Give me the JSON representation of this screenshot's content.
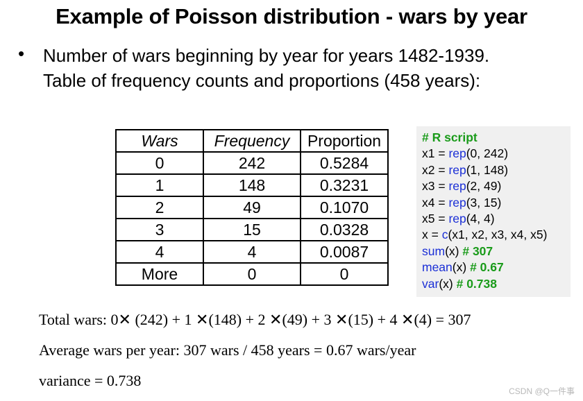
{
  "title": "Example of Poisson distribution - wars by year",
  "bullet": {
    "symbol": "•",
    "line1": "Number of wars beginning by year for years 1482-1939.",
    "line2": "Table of frequency counts and proportions (458 years):"
  },
  "table": {
    "headers": [
      "Wars",
      "Frequency",
      "Proportion"
    ],
    "rows": [
      [
        "0",
        "242",
        "0.5284"
      ],
      [
        "1",
        "148",
        "0.3231"
      ],
      [
        "2",
        "49",
        "0.1070"
      ],
      [
        "3",
        "15",
        "0.0328"
      ],
      [
        "4",
        "4",
        "0.0087"
      ],
      [
        "More",
        "0",
        "0"
      ]
    ]
  },
  "r_script": {
    "comment": "# R script",
    "x1_pre": "x1 = ",
    "x1_fn": "rep",
    "x1_args": "(0, 242)",
    "x2_pre": "x2 = ",
    "x2_fn": "rep",
    "x2_args": "(1, 148)",
    "x3_pre": "x3 = ",
    "x3_fn": "rep",
    "x3_args": "(2, 49)",
    "x4_pre": "x4 = ",
    "x4_fn": "rep",
    "x4_args": "(3, 15)",
    "x5_pre": "x5 = ",
    "x5_fn": "rep",
    "x5_args": "(4, 4)",
    "x_pre": "x = ",
    "x_fn": "c",
    "x_args": "(x1, x2, x3, x4, x5)",
    "sum_fn": "sum",
    "sum_args": "(x) ",
    "sum_comment": "# 307",
    "mean_fn": "mean",
    "mean_args": "(x) ",
    "mean_comment": "# 0.67",
    "var_fn": "var",
    "var_args": "(x) ",
    "var_comment": "# 0.738"
  },
  "math": {
    "total": "Total wars: 0✕ (242) + 1 ✕(148) + 2 ✕(49) + 3 ✕(15) + 4 ✕(4) = 307",
    "average": "Average wars per year: 307 wars / 458 years =  0.67 wars/year",
    "variance": "variance = 0.738"
  },
  "watermark": "CSDN @Q一件事"
}
